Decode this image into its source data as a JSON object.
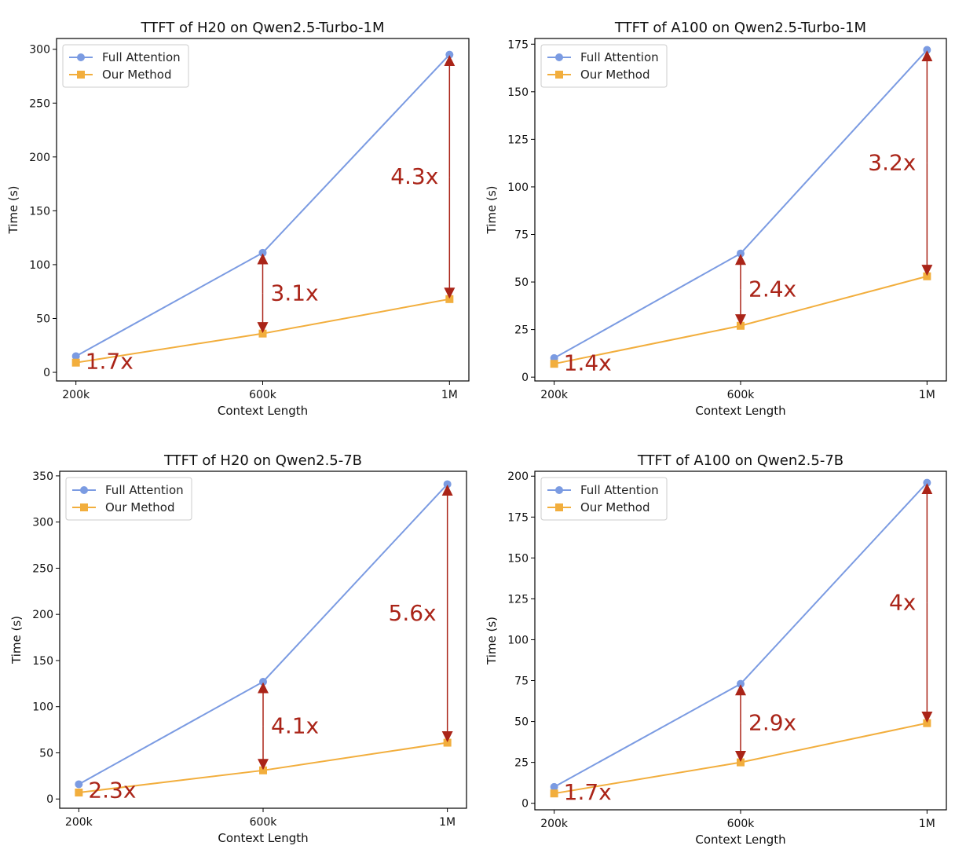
{
  "chart_data": [
    {
      "type": "line",
      "title": "TTFT of H20 on Qwen2.5-Turbo-1M",
      "xlabel": "Context Length",
      "ylabel": "Time (s)",
      "categories": [
        "200k",
        "600k",
        "1M"
      ],
      "ylim": [
        -8,
        310
      ],
      "yticks": [
        0,
        50,
        100,
        150,
        200,
        250,
        300
      ],
      "legend": "top-left",
      "series": [
        {
          "name": "Full Attention",
          "color": "#7b9be2",
          "marker": "circle",
          "values": [
            15,
            111,
            295
          ]
        },
        {
          "name": "Our Method",
          "color": "#f2ae3d",
          "marker": "square",
          "values": [
            9,
            36,
            68
          ]
        }
      ],
      "annotations": [
        {
          "text": "1.7x",
          "index": 0,
          "arrow": false
        },
        {
          "text": "3.1x",
          "index": 1,
          "arrow": true
        },
        {
          "text": "4.3x",
          "index": 2,
          "arrow": true
        }
      ]
    },
    {
      "type": "line",
      "title": "TTFT of A100 on Qwen2.5-Turbo-1M",
      "xlabel": "Context Length",
      "ylabel": "Time (s)",
      "categories": [
        "200k",
        "600k",
        "1M"
      ],
      "ylim": [
        -2,
        178
      ],
      "yticks": [
        0,
        25,
        50,
        75,
        100,
        125,
        150,
        175
      ],
      "legend": "top-left",
      "series": [
        {
          "name": "Full Attention",
          "color": "#7b9be2",
          "marker": "circle",
          "values": [
            10,
            65,
            172
          ]
        },
        {
          "name": "Our Method",
          "color": "#f2ae3d",
          "marker": "square",
          "values": [
            7,
            27,
            53
          ]
        }
      ],
      "annotations": [
        {
          "text": "1.4x",
          "index": 0,
          "arrow": false
        },
        {
          "text": "2.4x",
          "index": 1,
          "arrow": true
        },
        {
          "text": "3.2x",
          "index": 2,
          "arrow": true
        }
      ]
    },
    {
      "type": "line",
      "title": "TTFT of H20 on Qwen2.5-7B",
      "xlabel": "Context Length",
      "ylabel": "Time (s)",
      "categories": [
        "200k",
        "600k",
        "1M"
      ],
      "ylim": [
        -10,
        355
      ],
      "yticks": [
        0,
        50,
        100,
        150,
        200,
        250,
        300,
        350
      ],
      "legend": "top-left",
      "series": [
        {
          "name": "Full Attention",
          "color": "#7b9be2",
          "marker": "circle",
          "values": [
            16,
            127,
            341
          ]
        },
        {
          "name": "Our Method",
          "color": "#f2ae3d",
          "marker": "square",
          "values": [
            7,
            31,
            61
          ]
        }
      ],
      "annotations": [
        {
          "text": "2.3x",
          "index": 0,
          "arrow": false
        },
        {
          "text": "4.1x",
          "index": 1,
          "arrow": true
        },
        {
          "text": "5.6x",
          "index": 2,
          "arrow": true
        }
      ]
    },
    {
      "type": "line",
      "title": "TTFT of A100 on Qwen2.5-7B",
      "xlabel": "Context Length",
      "ylabel": "Time (s)",
      "categories": [
        "200k",
        "600k",
        "1M"
      ],
      "ylim": [
        -4,
        203
      ],
      "yticks": [
        0,
        25,
        50,
        75,
        100,
        125,
        150,
        175,
        200
      ],
      "legend": "top-left",
      "series": [
        {
          "name": "Full Attention",
          "color": "#7b9be2",
          "marker": "circle",
          "values": [
            10,
            73,
            196
          ]
        },
        {
          "name": "Our Method",
          "color": "#f2ae3d",
          "marker": "square",
          "values": [
            6,
            25,
            49
          ]
        }
      ],
      "annotations": [
        {
          "text": "1.7x",
          "index": 0,
          "arrow": false
        },
        {
          "text": "2.9x",
          "index": 1,
          "arrow": true
        },
        {
          "text": "4x",
          "index": 2,
          "arrow": true
        }
      ]
    }
  ],
  "annotation_color": "#aa2418"
}
